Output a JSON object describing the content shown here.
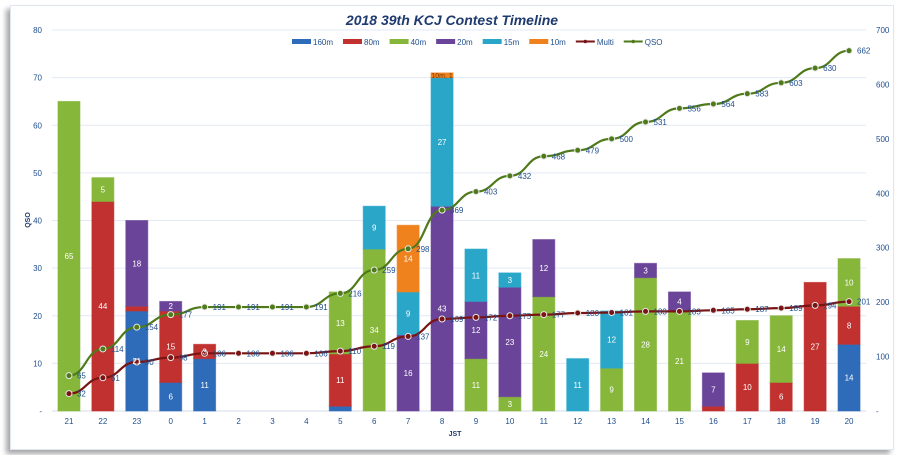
{
  "chart_data": {
    "type": "bar",
    "title": "2018 39th KCJ Contest Timeline",
    "xlabel": "JST",
    "ylabel": "QSO",
    "ylim": [
      0,
      80
    ],
    "y2lim": [
      0,
      700
    ],
    "yticks": [
      "-",
      "10",
      "20",
      "30",
      "40",
      "50",
      "60",
      "70",
      "80"
    ],
    "y2ticks": [
      "-",
      "100",
      "200",
      "300",
      "400",
      "500",
      "600",
      "700"
    ],
    "categories": [
      "21",
      "22",
      "23",
      "0",
      "1",
      "2",
      "3",
      "4",
      "5",
      "6",
      "7",
      "8",
      "9",
      "10",
      "11",
      "12",
      "13",
      "14",
      "15",
      "16",
      "17",
      "18",
      "19",
      "20"
    ],
    "stacked": true,
    "legend": "top",
    "series": [
      {
        "name": "160m",
        "kind": "bar",
        "color": "#2e6bb8",
        "values": [
          0,
          0,
          21,
          6,
          11,
          0,
          0,
          0,
          1,
          0,
          0,
          0,
          0,
          0,
          0,
          0,
          0,
          0,
          0,
          0,
          0,
          0,
          0,
          14
        ]
      },
      {
        "name": "80m",
        "kind": "bar",
        "color": "#c0312f",
        "values": [
          0,
          44,
          1,
          15,
          3,
          0,
          0,
          0,
          11,
          0,
          0,
          0,
          0,
          0,
          0,
          0,
          0,
          0,
          0,
          1,
          10,
          6,
          27,
          8
        ]
      },
      {
        "name": "40m",
        "kind": "bar",
        "color": "#86b63a",
        "values": [
          65,
          5,
          0,
          0,
          0,
          0,
          0,
          0,
          13,
          34,
          0,
          0,
          11,
          3,
          24,
          0,
          9,
          28,
          21,
          0,
          9,
          14,
          0,
          10
        ]
      },
      {
        "name": "20m",
        "kind": "bar",
        "color": "#6a4499",
        "values": [
          0,
          0,
          18,
          2,
          0,
          0,
          0,
          0,
          0,
          0,
          16,
          43,
          12,
          23,
          12,
          0,
          0,
          3,
          4,
          7,
          0,
          0,
          0,
          0
        ]
      },
      {
        "name": "15m",
        "kind": "bar",
        "color": "#2aa6c9",
        "values": [
          0,
          0,
          0,
          0,
          0,
          0,
          0,
          0,
          0,
          9,
          9,
          27,
          11,
          3,
          0,
          11,
          12,
          0,
          0,
          0,
          0,
          0,
          0,
          0
        ]
      },
      {
        "name": "10m",
        "kind": "bar",
        "color": "#f0821e",
        "values": [
          0,
          0,
          0,
          0,
          0,
          0,
          0,
          0,
          0,
          0,
          14,
          1,
          0,
          0,
          0,
          0,
          0,
          0,
          0,
          0,
          0,
          0,
          0,
          0
        ]
      },
      {
        "name": "Multi",
        "kind": "line",
        "axis": "right",
        "color": "#7a1414",
        "values": [
          32,
          61,
          90,
          98,
          106,
          106,
          106,
          106,
          110,
          119,
          137,
          169,
          172,
          175,
          177,
          180,
          181,
          183,
          183,
          185,
          187,
          189,
          194,
          201
        ]
      },
      {
        "name": "QSO",
        "kind": "line",
        "axis": "right",
        "color": "#4f7a1a",
        "values": [
          65,
          114,
          154,
          177,
          191,
          191,
          191,
          191,
          216,
          259,
          298,
          369,
          403,
          432,
          468,
          479,
          500,
          531,
          556,
          564,
          583,
          603,
          630,
          662
        ]
      }
    ],
    "annotations": [
      "10m, 1"
    ]
  }
}
